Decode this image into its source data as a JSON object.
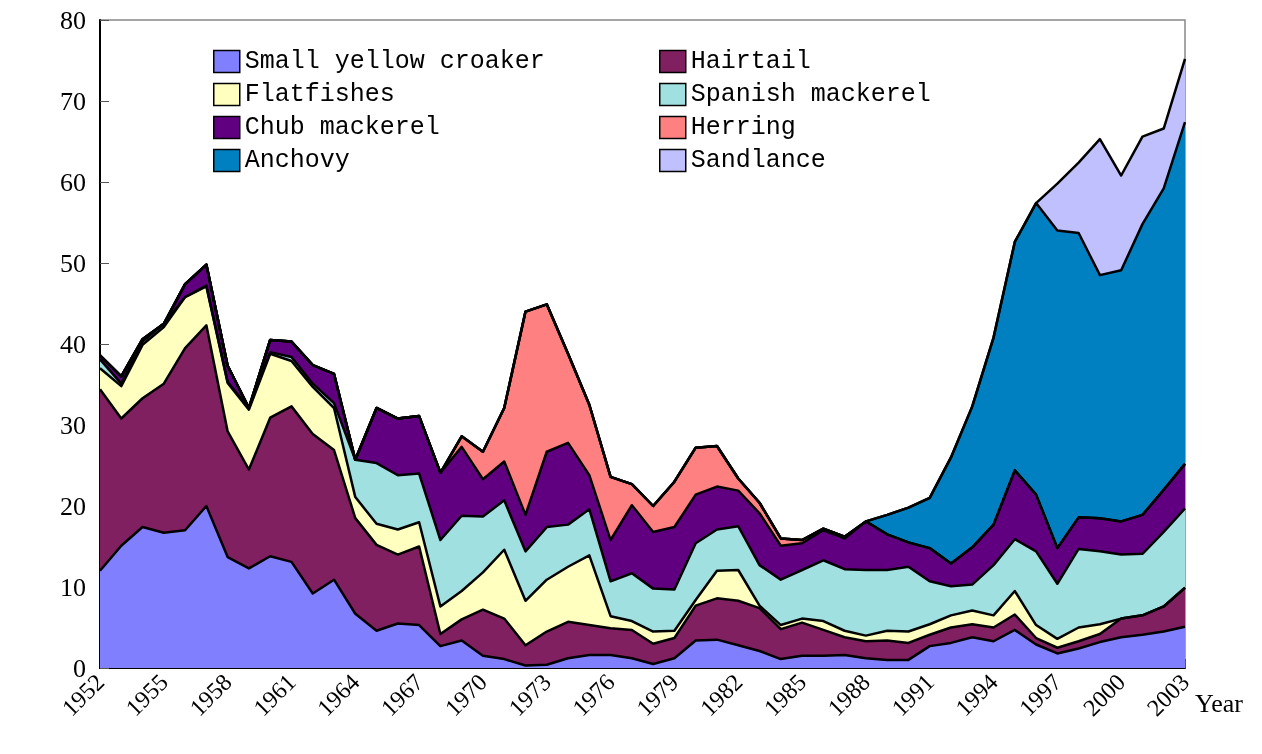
{
  "chart_data": {
    "type": "area",
    "stacked": true,
    "xlabel": "Year",
    "categories": [
      "1952",
      null,
      null,
      "1955",
      null,
      null,
      "1958",
      null,
      null,
      "1961",
      null,
      null,
      "1964",
      null,
      null,
      "1967",
      null,
      null,
      "1970",
      null,
      null,
      "1973",
      null,
      null,
      "1976",
      null,
      null,
      "1979",
      null,
      null,
      "1982",
      null,
      null,
      "1985",
      null,
      null,
      "1988",
      null,
      null,
      "1991",
      null,
      null,
      "1994",
      null,
      null,
      "1997",
      null,
      null,
      "2000",
      null,
      null,
      "2003"
    ],
    "series": [
      {
        "name": "Small yellow croaker",
        "color": "#8080ff",
        "values": [
          12.0,
          15.1,
          17.4,
          16.7,
          17.0,
          20.0,
          13.7,
          12.3,
          13.8,
          13.1,
          9.2,
          10.9,
          6.7,
          4.6,
          5.5,
          5.3,
          2.7,
          3.4,
          1.5,
          1.1,
          0.3,
          0.4,
          1.2,
          1.6,
          1.6,
          1.2,
          0.5,
          1.2,
          3.4,
          3.5,
          2.8,
          2.1,
          1.1,
          1.5,
          1.5,
          1.6,
          1.2,
          1.0,
          1.0,
          2.7,
          3.1,
          3.8,
          3.3,
          4.7,
          2.9,
          1.8,
          2.4,
          3.2,
          3.8,
          4.1,
          4.5,
          5.1
        ]
      },
      {
        "name": "Hairtail",
        "color": "#802060",
        "values": [
          22.4,
          15.7,
          15.9,
          18.4,
          22.5,
          22.3,
          15.5,
          12.2,
          17.1,
          19.2,
          19.7,
          16.0,
          11.8,
          10.6,
          8.5,
          9.7,
          1.5,
          2.6,
          5.7,
          5.0,
          2.5,
          4.1,
          4.5,
          3.7,
          3.3,
          3.5,
          2.5,
          2.5,
          4.3,
          5.1,
          5.5,
          5.3,
          3.7,
          4.1,
          3.2,
          2.2,
          2.1,
          2.4,
          2.1,
          1.4,
          1.9,
          1.6,
          1.7,
          1.9,
          0.8,
          0.7,
          0.9,
          1.0,
          2.3,
          2.4,
          3.1,
          4.8
        ]
      },
      {
        "name": "Flatfishes",
        "color": "#ffffc0",
        "values": [
          2.6,
          4.0,
          6.6,
          7.0,
          6.3,
          4.8,
          6.0,
          7.4,
          7.9,
          5.6,
          5.8,
          5.2,
          2.6,
          2.6,
          3.1,
          3.0,
          3.4,
          3.5,
          4.6,
          8.5,
          5.5,
          6.4,
          6.8,
          8.6,
          1.5,
          1.1,
          1.5,
          0.9,
          0.7,
          3.4,
          3.8,
          0.3,
          0.5,
          0.5,
          1.1,
          0.8,
          0.7,
          1.2,
          1.4,
          1.3,
          1.5,
          1.7,
          1.5,
          2.9,
          1.6,
          1.1,
          1.7,
          1.2,
          0,
          0,
          0,
          0
        ]
      },
      {
        "name": "Spanish mackerel",
        "color": "#a0e0e0",
        "values": [
          1.1,
          0.3,
          0.4,
          0.4,
          0,
          0.1,
          0.1,
          0.2,
          0.2,
          0.5,
          0.4,
          0.6,
          4.6,
          7.5,
          6.7,
          6.0,
          8.2,
          9.3,
          6.9,
          6.1,
          6.1,
          6.5,
          5.2,
          5.7,
          4.3,
          5.9,
          5.3,
          5.1,
          7.0,
          5.1,
          5.4,
          5.0,
          5.6,
          6.0,
          7.5,
          7.6,
          8.1,
          7.5,
          8.0,
          5.3,
          3.6,
          3.2,
          6.2,
          6.4,
          9.1,
          6.8,
          9.7,
          9.0,
          7.9,
          7.6,
          9.2,
          9.8
        ]
      },
      {
        "name": "Chub mackerel",
        "color": "#600080",
        "values": [
          0.5,
          0.9,
          0.3,
          0,
          1.6,
          2.6,
          2.0,
          0,
          1.5,
          1.9,
          2.3,
          3.6,
          0,
          6.8,
          7.0,
          7.1,
          8.3,
          8.5,
          4.6,
          4.8,
          4.5,
          9.3,
          10.1,
          4.2,
          5.1,
          8.4,
          7.0,
          7.7,
          6.0,
          5.3,
          4.4,
          6.4,
          4.2,
          3.3,
          3.7,
          3.8,
          6.0,
          4.4,
          3.0,
          4.1,
          2.8,
          4.6,
          5.0,
          8.5,
          7.0,
          4.4,
          3.9,
          4.1,
          4.1,
          4.8,
          5.2,
          5.5
        ]
      },
      {
        "name": "Herring",
        "color": "#ff8080",
        "values": [
          0,
          0,
          0,
          0,
          0,
          0,
          0,
          0,
          0,
          0,
          0,
          0,
          0,
          0,
          0,
          0,
          0,
          1.3,
          3.4,
          6.6,
          25.1,
          18.2,
          11.0,
          8.7,
          7.8,
          2.6,
          3.2,
          5.6,
          5.8,
          5.0,
          1.5,
          1.3,
          0.9,
          0.4,
          0.2,
          0.2,
          0,
          0,
          0,
          0,
          0,
          0,
          0,
          0,
          0,
          0,
          0,
          0,
          0,
          0,
          0,
          0
        ]
      },
      {
        "name": "Anchovy",
        "color": "#0080c0",
        "values": [
          0,
          0,
          0,
          0,
          0,
          0,
          0,
          0,
          0,
          0,
          0,
          0,
          0,
          0,
          0,
          0,
          0,
          0,
          0,
          0,
          0,
          0,
          0,
          0,
          0,
          0,
          0,
          0,
          0,
          0,
          0,
          0,
          0,
          0,
          0,
          0,
          0,
          2.4,
          4.3,
          6.2,
          13.1,
          17.4,
          23.1,
          28.2,
          36.0,
          39.2,
          35.1,
          30.0,
          31.0,
          35.9,
          37.2,
          42.2
        ]
      },
      {
        "name": "Sandlance",
        "color": "#c0c0ff",
        "values": [
          0,
          0,
          0,
          0,
          0,
          0,
          0,
          0,
          0,
          0,
          0,
          0,
          0,
          0,
          0,
          0,
          0,
          0,
          0,
          0,
          0,
          0,
          0,
          0,
          0,
          0,
          0,
          0,
          0,
          0,
          0,
          0,
          0,
          0,
          0,
          0,
          0,
          0,
          0,
          0,
          0,
          0,
          0,
          0,
          0,
          5.8,
          8.7,
          16.8,
          11.7,
          10.8,
          7.4,
          7.8
        ]
      }
    ],
    "ylim": [
      0,
      80
    ],
    "yticks": [
      0,
      10,
      20,
      30,
      40,
      50,
      60,
      70,
      80
    ],
    "legend": "top left",
    "marker": "none",
    "line_style": "solid",
    "grid": false
  }
}
